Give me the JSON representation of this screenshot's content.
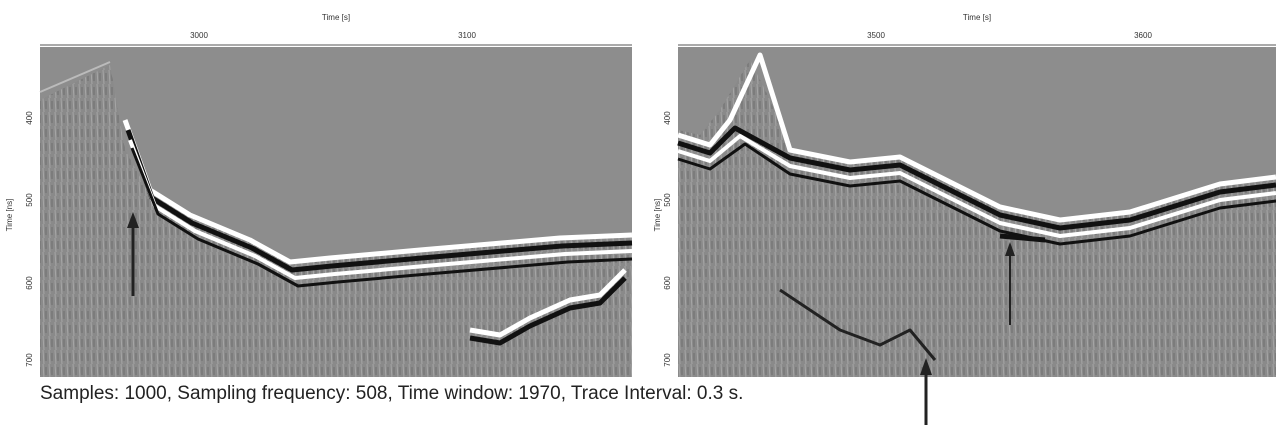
{
  "panels": [
    {
      "x_axis_label": "Time [s]",
      "y_axis_label": "Time [ns]",
      "x_ticks": [
        "3000",
        "3100"
      ],
      "y_ticks": [
        "400",
        "500",
        "600",
        "700"
      ]
    },
    {
      "x_axis_label": "Time [s]",
      "y_axis_label": "Time [ns]",
      "x_ticks": [
        "3500",
        "3600"
      ],
      "y_ticks": [
        "400",
        "500",
        "600",
        "700"
      ]
    }
  ],
  "caption": "Samples: 1000, Sampling frequency: 508, Time window: 1970, Trace Interval: 0.3 s."
}
